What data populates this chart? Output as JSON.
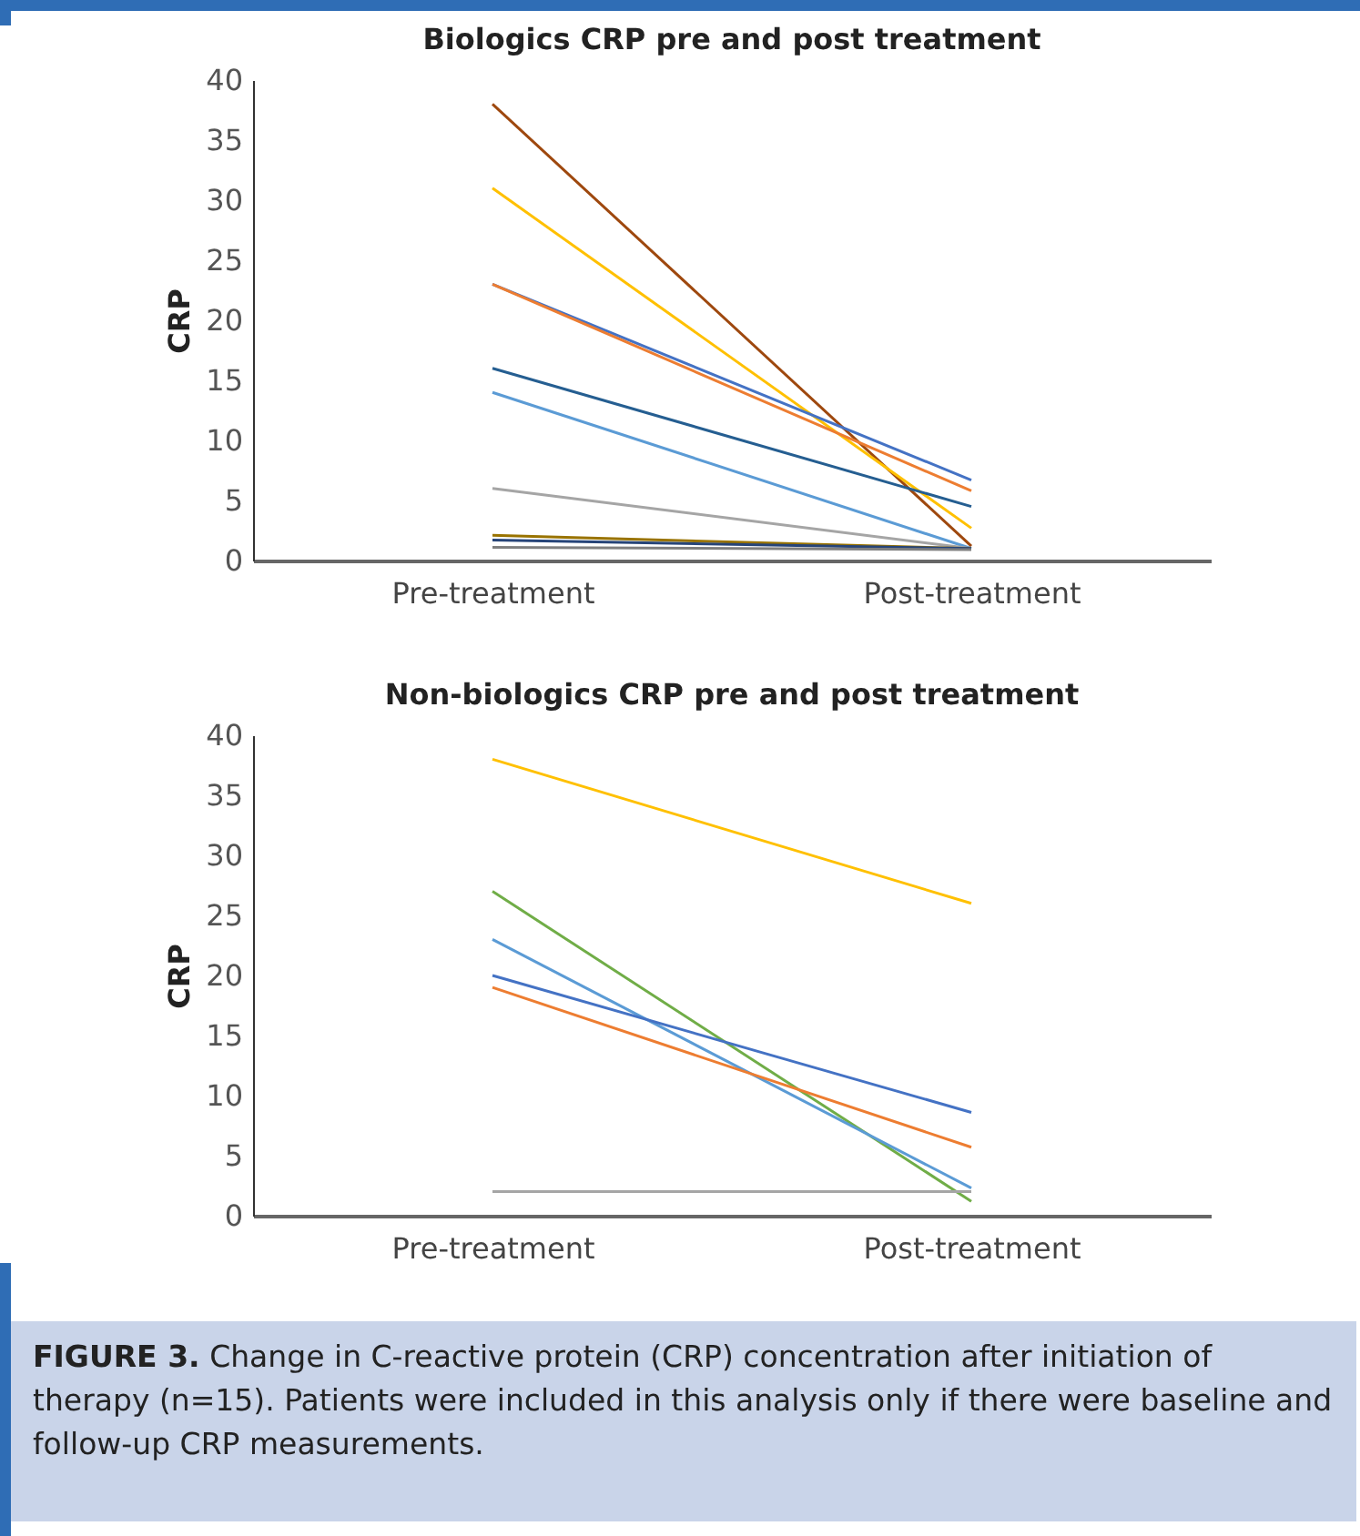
{
  "chart_data": [
    {
      "type": "line",
      "title": "Biologics CRP pre and post treatment",
      "ylabel": "CRP",
      "categories": [
        "Pre-treatment",
        "Post-treatment"
      ],
      "ylim": [
        0,
        40
      ],
      "yticks": [
        0,
        5,
        10,
        15,
        20,
        25,
        30,
        35,
        40
      ],
      "grid": false,
      "line_style": "solid",
      "series": [
        {
          "color": "#9e480e",
          "values": [
            38,
            1.2
          ]
        },
        {
          "color": "#ffc000",
          "values": [
            31,
            2.7
          ]
        },
        {
          "color": "#4472c4",
          "values": [
            23,
            6.7
          ]
        },
        {
          "color": "#ed7d31",
          "values": [
            23,
            5.8
          ]
        },
        {
          "color": "#255e91",
          "values": [
            16,
            4.5
          ]
        },
        {
          "color": "#5b9bd5",
          "values": [
            14,
            1
          ]
        },
        {
          "color": "#a5a5a5",
          "values": [
            6,
            1
          ]
        },
        {
          "color": "#997300",
          "values": [
            2.1,
            1
          ]
        },
        {
          "color": "#264478",
          "values": [
            1.7,
            1
          ]
        },
        {
          "color": "#7f7f7f",
          "values": [
            1.1,
            0.9
          ]
        }
      ]
    },
    {
      "type": "line",
      "title": "Non-biologics CRP pre and post treatment",
      "ylabel": "CRP",
      "categories": [
        "Pre-treatment",
        "Post-treatment"
      ],
      "ylim": [
        0,
        40
      ],
      "yticks": [
        0,
        5,
        10,
        15,
        20,
        25,
        30,
        35,
        40
      ],
      "grid": false,
      "line_style": "solid",
      "series": [
        {
          "color": "#ffc000",
          "values": [
            38,
            26
          ]
        },
        {
          "color": "#70ad47",
          "values": [
            27,
            1.2
          ]
        },
        {
          "color": "#5b9bd5",
          "values": [
            23,
            2.3
          ]
        },
        {
          "color": "#4472c4",
          "values": [
            20,
            8.6
          ]
        },
        {
          "color": "#ed7d31",
          "values": [
            19,
            5.7
          ]
        },
        {
          "color": "#a5a5a5",
          "values": [
            2,
            2
          ]
        }
      ],
      "annotations": [
        "FIGURE 3. Change in C-reactive protein (CRP) concentration after initiation of therapy (n=15). Patients were included in this analysis only if there were baseline and follow-up CRP measurements."
      ]
    }
  ]
}
